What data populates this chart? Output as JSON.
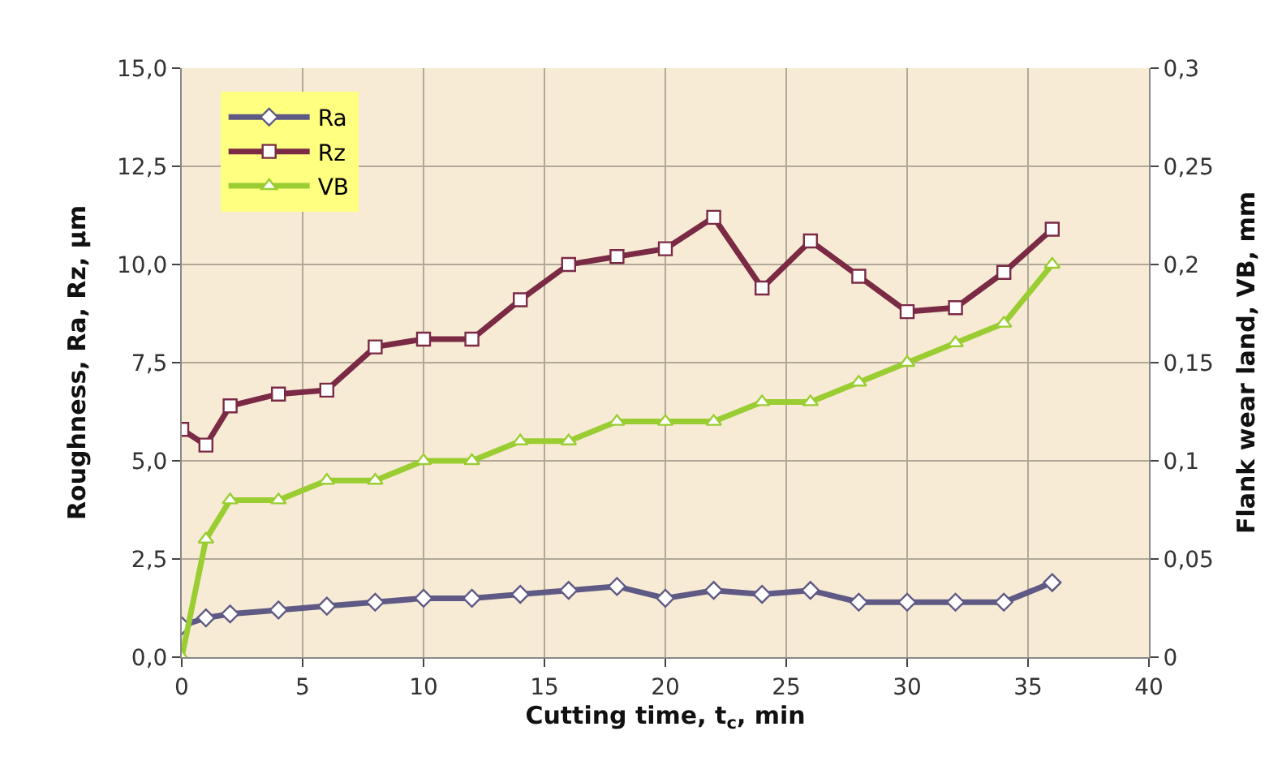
{
  "chart_data": {
    "type": "line",
    "xlabel": "Cutting time, t$_{c}$, min",
    "ylabel": "Roughness, Ra, Rz, µm",
    "y2label": "Flank wear land, VB, mm",
    "x": [
      0,
      1,
      2,
      4,
      6,
      8,
      10,
      12,
      14,
      16,
      18,
      20,
      22,
      24,
      26,
      28,
      30,
      32,
      34,
      36
    ],
    "series": [
      {
        "name": "Ra",
        "color": "#5f5a85",
        "marker": "diamond",
        "values": [
          0.8,
          1.0,
          1.1,
          1.2,
          1.3,
          1.4,
          1.5,
          1.5,
          1.6,
          1.7,
          1.8,
          1.5,
          1.7,
          1.6,
          1.7,
          1.4,
          1.4,
          1.4,
          1.4,
          1.9
        ]
      },
      {
        "name": "Rz",
        "color": "#7b2a45",
        "marker": "square",
        "values": [
          5.8,
          5.4,
          6.4,
          6.7,
          6.8,
          7.9,
          8.1,
          8.1,
          9.1,
          10.0,
          10.2,
          10.4,
          11.2,
          9.4,
          10.6,
          9.7,
          8.8,
          8.9,
          9.8,
          10.9
        ]
      },
      {
        "name": "VB",
        "color": "#9acd32",
        "marker": "triangle",
        "axis": "y2",
        "values": [
          0,
          0.06,
          0.08,
          0.08,
          0.09,
          0.09,
          0.1,
          0.1,
          0.11,
          0.11,
          0.12,
          0.12,
          0.12,
          0.13,
          0.13,
          0.14,
          0.15,
          0.16,
          0.17,
          0.2
        ]
      }
    ],
    "xlim": [
      0,
      40
    ],
    "xticks": [
      0,
      5,
      10,
      15,
      20,
      25,
      30,
      35,
      40
    ],
    "ylim": [
      0,
      15
    ],
    "yticks": [
      {
        "value": 0,
        "label": "0,0"
      },
      {
        "value": 2.5,
        "label": "2,5"
      },
      {
        "value": 5,
        "label": "5,0"
      },
      {
        "value": 7.5,
        "label": "7,5"
      },
      {
        "value": 10,
        "label": "10,0"
      },
      {
        "value": 12.5,
        "label": "12,5"
      },
      {
        "value": 15,
        "label": "15,0"
      }
    ],
    "y2lim": [
      0,
      0.3
    ],
    "y2ticks": [
      0,
      {
        "value": 0.05,
        "label": "0,05"
      },
      {
        "value": 0.1,
        "label": "0,1"
      },
      {
        "value": 0.15,
        "label": "0,15"
      },
      {
        "value": 0.2,
        "label": "0,2"
      },
      {
        "value": 0.25,
        "label": "0,25"
      },
      {
        "value": 0.3,
        "label": "0,3"
      }
    ],
    "grid": true,
    "legend": "top left",
    "line_style": "solid"
  }
}
